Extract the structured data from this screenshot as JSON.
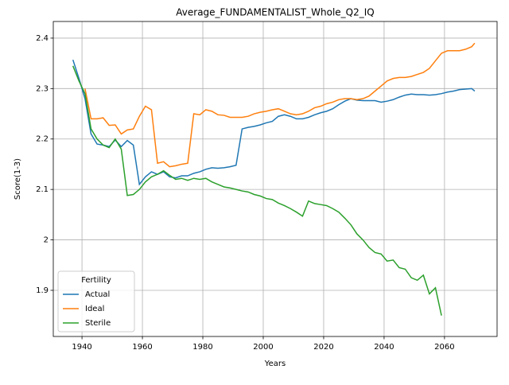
{
  "chart_data": {
    "type": "line",
    "title": "Average_FUNDAMENTALIST_Whole_Q2_IQ",
    "xlabel": "Years",
    "ylabel": "Score(1-3)",
    "x": [
      1937,
      1939,
      1941,
      1943,
      1945,
      1947,
      1949,
      1951,
      1953,
      1955,
      1957,
      1959,
      1961,
      1963,
      1965,
      1967,
      1969,
      1971,
      1973,
      1975,
      1977,
      1979,
      1981,
      1983,
      1985,
      1987,
      1989,
      1991,
      1993,
      1995,
      1997,
      1999,
      2001,
      2003,
      2005,
      2007,
      2009,
      2011,
      2013,
      2015,
      2017,
      2019,
      2021,
      2023,
      2025,
      2027,
      2029,
      2031,
      2033,
      2035,
      2037,
      2039,
      2041,
      2043,
      2045,
      2047,
      2049,
      2051,
      2053,
      2055,
      2057,
      2059,
      2061,
      2063,
      2065,
      2067,
      2069,
      2070
    ],
    "series": [
      {
        "name": "Actual",
        "color": "#1f77b4",
        "values": [
          2.357,
          2.32,
          2.28,
          2.21,
          2.19,
          2.188,
          2.185,
          2.198,
          2.185,
          2.197,
          2.188,
          2.11,
          2.125,
          2.135,
          2.13,
          2.135,
          2.125,
          2.123,
          2.127,
          2.127,
          2.132,
          2.135,
          2.14,
          2.143,
          2.142,
          2.143,
          2.145,
          2.148,
          2.22,
          2.223,
          2.225,
          2.228,
          2.232,
          2.235,
          2.245,
          2.248,
          2.245,
          2.24,
          2.24,
          2.243,
          2.248,
          2.252,
          2.255,
          2.26,
          2.268,
          2.275,
          2.28,
          2.277,
          2.276,
          2.276,
          2.276,
          2.273,
          2.275,
          2.278,
          2.283,
          2.287,
          2.289,
          2.288,
          2.288,
          2.287,
          2.288,
          2.29,
          2.293,
          2.295,
          2.298,
          2.299,
          2.3,
          2.295
        ]
      },
      {
        "name": "Ideal",
        "color": "#ff7f0e",
        "values": [
          null,
          null,
          2.3,
          2.24,
          2.24,
          2.242,
          2.227,
          2.228,
          2.21,
          2.218,
          2.22,
          2.245,
          2.265,
          2.258,
          2.152,
          2.155,
          2.145,
          2.147,
          2.15,
          2.152,
          2.25,
          2.248,
          2.258,
          2.255,
          2.248,
          2.247,
          2.243,
          2.243,
          2.243,
          2.245,
          2.25,
          2.253,
          2.255,
          2.258,
          2.26,
          2.255,
          2.25,
          2.248,
          2.25,
          2.255,
          2.262,
          2.265,
          2.27,
          2.273,
          2.278,
          2.28,
          2.28,
          2.278,
          2.28,
          2.285,
          2.295,
          2.305,
          2.315,
          2.32,
          2.322,
          2.322,
          2.324,
          2.328,
          2.332,
          2.34,
          2.355,
          2.37,
          2.375,
          2.375,
          2.375,
          2.378,
          2.383,
          2.39
        ]
      },
      {
        "name": "Sterile",
        "color": "#2ca02c",
        "values": [
          2.345,
          2.315,
          2.29,
          2.22,
          2.2,
          2.188,
          2.183,
          2.2,
          2.18,
          2.088,
          2.09,
          2.1,
          2.115,
          2.125,
          2.13,
          2.137,
          2.128,
          2.12,
          2.122,
          2.118,
          2.122,
          2.12,
          2.122,
          2.115,
          2.11,
          2.105,
          2.103,
          2.1,
          2.097,
          2.095,
          2.09,
          2.087,
          2.082,
          2.08,
          2.073,
          2.068,
          2.062,
          2.055,
          2.047,
          2.077,
          2.072,
          2.07,
          2.068,
          2.062,
          2.055,
          2.043,
          2.03,
          2.012,
          2.0,
          1.985,
          1.975,
          1.972,
          1.958,
          1.96,
          1.945,
          1.942,
          1.925,
          1.92,
          1.93,
          1.893,
          1.905,
          1.85,
          null,
          null,
          null,
          null,
          null,
          null
        ]
      }
    ],
    "xlim": [
      1930.5,
      2077.4
    ],
    "ylim": [
      1.8085,
      2.433
    ],
    "xticks": [
      1940,
      1960,
      1980,
      2000,
      2020,
      2040,
      2060
    ],
    "yticks": [
      1.9,
      2.0,
      {
        "value": 2.1,
        "label": "2.1"
      },
      2.2,
      2.3,
      2.4
    ],
    "grid": true,
    "legend_title": "Fertility",
    "legend": "lower left"
  }
}
